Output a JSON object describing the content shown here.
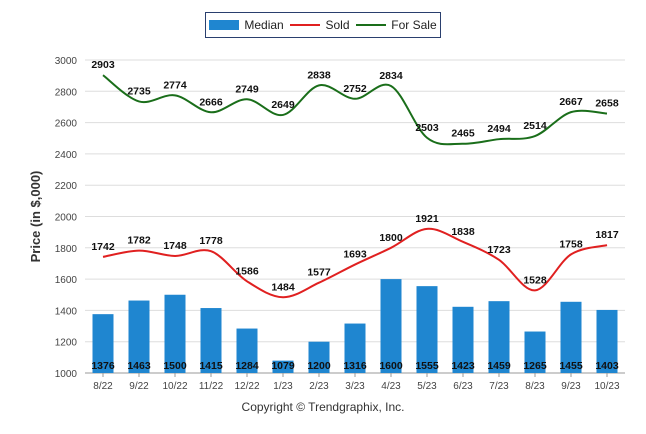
{
  "chart_data": {
    "type": "bar",
    "categories": [
      "8/22",
      "9/22",
      "10/22",
      "11/22",
      "12/22",
      "1/23",
      "2/23",
      "3/23",
      "4/23",
      "5/23",
      "6/23",
      "7/23",
      "8/23",
      "9/23",
      "10/23"
    ],
    "series": [
      {
        "name": "Median",
        "kind": "bar",
        "color": "#1f86d0",
        "values": [
          1376,
          1463,
          1500,
          1415,
          1284,
          1079,
          1200,
          1316,
          1600,
          1555,
          1423,
          1459,
          1265,
          1455,
          1403
        ]
      },
      {
        "name": "Sold",
        "kind": "line",
        "color": "#e02020",
        "values": [
          1742,
          1782,
          1748,
          1778,
          1586,
          1484,
          1577,
          1693,
          1800,
          1921,
          1838,
          1723,
          1528,
          1758,
          1817
        ]
      },
      {
        "name": "For Sale",
        "kind": "line",
        "color": "#1a6e1a",
        "values": [
          2903,
          2735,
          2774,
          2666,
          2749,
          2649,
          2838,
          2752,
          2834,
          2503,
          2465,
          2494,
          2514,
          2667,
          2658
        ]
      }
    ],
    "ylabel": "Price (in $,000)",
    "ylim": [
      1000,
      3000
    ],
    "yticks": [
      1000,
      1200,
      1400,
      1600,
      1800,
      2000,
      2200,
      2400,
      2600,
      2800,
      3000
    ],
    "grid": true,
    "legend": "top-center"
  },
  "copyright": "Copyright © Trendgraphix, Inc."
}
